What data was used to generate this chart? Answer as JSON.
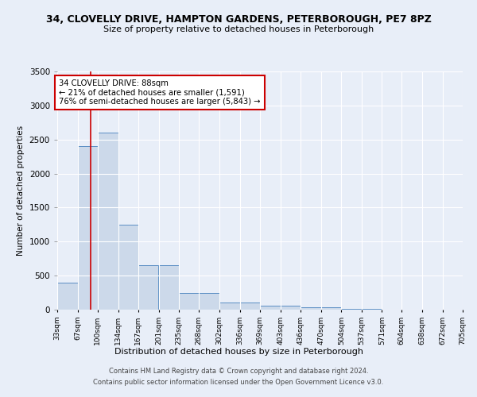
{
  "title1": "34, CLOVELLY DRIVE, HAMPTON GARDENS, PETERBOROUGH, PE7 8PZ",
  "title2": "Size of property relative to detached houses in Peterborough",
  "xlabel": "Distribution of detached houses by size in Peterborough",
  "ylabel": "Number of detached properties",
  "bin_labels": [
    "33sqm",
    "67sqm",
    "100sqm",
    "134sqm",
    "167sqm",
    "201sqm",
    "235sqm",
    "268sqm",
    "302sqm",
    "336sqm",
    "369sqm",
    "403sqm",
    "436sqm",
    "470sqm",
    "504sqm",
    "537sqm",
    "571sqm",
    "604sqm",
    "638sqm",
    "672sqm",
    "705sqm"
  ],
  "bin_edges": [
    33,
    67,
    100,
    134,
    167,
    201,
    235,
    268,
    302,
    336,
    369,
    403,
    436,
    470,
    504,
    537,
    571,
    604,
    638,
    672,
    705
  ],
  "bar_heights": [
    400,
    2400,
    2600,
    1250,
    650,
    650,
    250,
    250,
    100,
    100,
    60,
    60,
    40,
    40,
    10,
    10,
    5,
    5,
    5,
    5
  ],
  "bar_color": "#ccd9ea",
  "bar_edge_color": "#5b8ec4",
  "bg_color": "#e8eef8",
  "grid_color": "#ffffff",
  "red_line_x": 88,
  "annotation_title": "34 CLOVELLY DRIVE: 88sqm",
  "annotation_line1": "← 21% of detached houses are smaller (1,591)",
  "annotation_line2": "76% of semi-detached houses are larger (5,843) →",
  "annotation_box_color": "#ffffff",
  "annotation_box_edge": "#cc0000",
  "red_line_color": "#cc0000",
  "ylim": [
    0,
    3500
  ],
  "yticks": [
    0,
    500,
    1000,
    1500,
    2000,
    2500,
    3000,
    3500
  ],
  "footer1": "Contains HM Land Registry data © Crown copyright and database right 2024.",
  "footer2": "Contains public sector information licensed under the Open Government Licence v3.0."
}
